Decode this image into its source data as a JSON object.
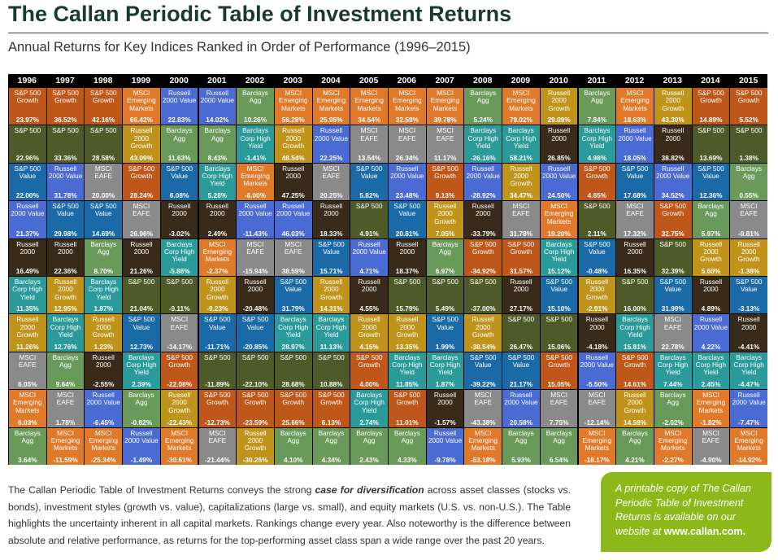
{
  "header": {
    "title": "The Callan Periodic Table of Investment Returns",
    "subtitle": "Annual Returns for Key Indices Ranked in Order of Performance (1996–2015)"
  },
  "colors": {
    "S&P 500 Growth": "#c0571a",
    "S&P 500": "#4e5a27",
    "S&P 500 Value": "#1a6aa8",
    "Russell 2000 Value": "#4a6ad4",
    "Russell 2000": "#3a2a1a",
    "Barclays Corp High Yield": "#2a9a9a",
    "Russell 2000 Growth": "#c0941a",
    "MSCI EAFE": "#8a8a8a",
    "Barclays Agg": "#6a9a5a",
    "MSCI Emerging Markets": "#e07a2a",
    "grid": "#000000",
    "callout": "#8cb81a"
  },
  "chart_data": {
    "type": "table",
    "title": "The Callan Periodic Table of Investment Returns",
    "subtitle": "Annual Returns for Key Indices Ranked in Order of Performance (1996–2015)",
    "years": [
      "1996",
      "1997",
      "1998",
      "1999",
      "2000",
      "2001",
      "2002",
      "2003",
      "2004",
      "2005",
      "2006",
      "2007",
      "2008",
      "2009",
      "2010",
      "2011",
      "2012",
      "2013",
      "2014",
      "2015"
    ],
    "columns": [
      [
        [
          "S&P 500 Growth",
          "23.97%"
        ],
        [
          "S&P 500",
          "22.96%"
        ],
        [
          "S&P 500 Value",
          "22.00%"
        ],
        [
          "Russell 2000 Value",
          "21.37%"
        ],
        [
          "Russell 2000",
          "16.49%"
        ],
        [
          "Barclays Corp High Yield",
          "11.35%"
        ],
        [
          "Russell 2000 Growth",
          "11.26%"
        ],
        [
          "MSCI EAFE",
          "6.05%"
        ],
        [
          "MSCI Emerging Markets",
          "6.03%"
        ],
        [
          "Barclays Agg",
          "3.64%"
        ]
      ],
      [
        [
          "S&P 500 Growth",
          "36.52%"
        ],
        [
          "S&P 500",
          "33.36%"
        ],
        [
          "Russell 2000 Value",
          "31.78%"
        ],
        [
          "S&P 500 Value",
          "29.98%"
        ],
        [
          "Russell 2000",
          "22.36%"
        ],
        [
          "Russell 2000 Growth",
          "12.95%"
        ],
        [
          "Barclays Corp High Yield",
          "12.76%"
        ],
        [
          "Barclays Agg",
          "9.64%"
        ],
        [
          "MSCI EAFE",
          "1.78%"
        ],
        [
          "MSCI Emerging Markets",
          "-11.59%"
        ]
      ],
      [
        [
          "S&P 500 Growth",
          "42.16%"
        ],
        [
          "S&P 500",
          "28.58%"
        ],
        [
          "MSCI EAFE",
          "20.00%"
        ],
        [
          "S&P 500 Value",
          "14.69%"
        ],
        [
          "Barclays Agg",
          "8.70%"
        ],
        [
          "Barclays Corp High Yield",
          "1.87%"
        ],
        [
          "Russell 2000 Growth",
          "1.23%"
        ],
        [
          "Russell 2000",
          "-2.55%"
        ],
        [
          "Russell 2000 Value",
          "-6.45%"
        ],
        [
          "MSCI Emerging Markets",
          "-25.34%"
        ]
      ],
      [
        [
          "MSCI Emerging Markets",
          "66.42%"
        ],
        [
          "Russell 2000 Growth",
          "43.09%"
        ],
        [
          "S&P 500 Growth",
          "28.24%"
        ],
        [
          "MSCI EAFE",
          "26.96%"
        ],
        [
          "Russell 2000",
          "21.26%"
        ],
        [
          "S&P 500",
          "21.04%"
        ],
        [
          "S&P 500 Value",
          "12.73%"
        ],
        [
          "Barclays Corp High Yield",
          "2.39%"
        ],
        [
          "Barclays Agg",
          "-0.82%"
        ],
        [
          "Russell 2000 Value",
          "-1.49%"
        ]
      ],
      [
        [
          "Russell 2000 Value",
          "22.83%"
        ],
        [
          "Barclays Agg",
          "11.63%"
        ],
        [
          "S&P 500 Value",
          "6.08%"
        ],
        [
          "Russell 2000",
          "-3.02%"
        ],
        [
          "Barclays Corp High Yield",
          "-5.86%"
        ],
        [
          "S&P 500",
          "-9.11%"
        ],
        [
          "MSCI EAFE",
          "-14.17%"
        ],
        [
          "S&P 500 Growth",
          "-22.08%"
        ],
        [
          "Russell 2000 Growth",
          "-22.43%"
        ],
        [
          "MSCI Emerging Markets",
          "-30.61%"
        ]
      ],
      [
        [
          "Russell 2000 Value",
          "14.02%"
        ],
        [
          "Barclays Agg",
          "8.43%"
        ],
        [
          "Barclays Corp High Yield",
          "5.28%"
        ],
        [
          "Russell 2000",
          "2.49%"
        ],
        [
          "MSCI Emerging Markets",
          "-2.37%"
        ],
        [
          "Russell 2000 Growth",
          "-9.23%"
        ],
        [
          "S&P 500 Value",
          "-11.71%"
        ],
        [
          "S&P 500",
          "-11.89%"
        ],
        [
          "S&P 500 Growth",
          "-12.73%"
        ],
        [
          "MSCI EAFE",
          "-21.44%"
        ]
      ],
      [
        [
          "Barclays Agg",
          "10.26%"
        ],
        [
          "Barclays Corp High Yield",
          "-1.41%"
        ],
        [
          "MSCI Emerging Markets",
          "-6.00%"
        ],
        [
          "Russell 2000 Value",
          "-11.43%"
        ],
        [
          "MSCI EAFE",
          "-15.94%"
        ],
        [
          "Russell 2000",
          "-20.48%"
        ],
        [
          "S&P 500 Value",
          "-20.85%"
        ],
        [
          "S&P 500",
          "-22.10%"
        ],
        [
          "S&P 500 Growth",
          "-23.59%"
        ],
        [
          "Russell 2000 Growth",
          "-30.26%"
        ]
      ],
      [
        [
          "MSCI Emerging Markets",
          "56.28%"
        ],
        [
          "Russell 2000 Growth",
          "48.54%"
        ],
        [
          "Russell 2000",
          "47.25%"
        ],
        [
          "Russell 2000 Value",
          "46.03%"
        ],
        [
          "MSCI EAFE",
          "38.59%"
        ],
        [
          "S&P 500 Value",
          "31.79%"
        ],
        [
          "Barclays Corp High Yield",
          "28.97%"
        ],
        [
          "S&P 500",
          "28.68%"
        ],
        [
          "S&P 500 Growth",
          "25.66%"
        ],
        [
          "Barclays Agg",
          "4.10%"
        ]
      ],
      [
        [
          "MSCI Emerging Markets",
          "25.95%"
        ],
        [
          "Russell 2000 Value",
          "22.25%"
        ],
        [
          "MSCI EAFE",
          "20.25%"
        ],
        [
          "Russell 2000",
          "18.33%"
        ],
        [
          "S&P 500 Value",
          "15.71%"
        ],
        [
          "Russell 2000 Growth",
          "14.31%"
        ],
        [
          "Barclays Corp High Yield",
          "11.13%"
        ],
        [
          "S&P 500",
          "10.88%"
        ],
        [
          "S&P 500 Growth",
          "6.13%"
        ],
        [
          "Barclays Agg",
          "4.34%"
        ]
      ],
      [
        [
          "MSCI Emerging Markets",
          "34.54%"
        ],
        [
          "MSCI EAFE",
          "13.54%"
        ],
        [
          "S&P 500 Value",
          "5.82%"
        ],
        [
          "S&P 500",
          "4.91%"
        ],
        [
          "Russell 2000 Value",
          "4.71%"
        ],
        [
          "Russell 2000",
          "4.55%"
        ],
        [
          "Russell 2000 Growth",
          "4.15%"
        ],
        [
          "S&P 500 Growth",
          "4.00%"
        ],
        [
          "Barclays Corp High Yield",
          "2.74%"
        ],
        [
          "Barclays Agg",
          "2.43%"
        ]
      ],
      [
        [
          "MSCI Emerging Markets",
          "32.59%"
        ],
        [
          "MSCI EAFE",
          "26.34%"
        ],
        [
          "Russell 2000 Value",
          "23.48%"
        ],
        [
          "S&P 500 Value",
          "20.81%"
        ],
        [
          "Russell 2000",
          "18.37%"
        ],
        [
          "S&P 500",
          "15.79%"
        ],
        [
          "Russell 2000 Growth",
          "13.35%"
        ],
        [
          "Barclays Corp High Yield",
          "11.85%"
        ],
        [
          "S&P 500 Growth",
          "11.01%"
        ],
        [
          "Barclays Agg",
          "4.33%"
        ]
      ],
      [
        [
          "MSCI Emerging Markets",
          "39.78%"
        ],
        [
          "MSCI EAFE",
          "11.17%"
        ],
        [
          "S&P 500 Growth",
          "9.13%"
        ],
        [
          "Russell 2000 Growth",
          "7.05%"
        ],
        [
          "Barclays Agg",
          "6.97%"
        ],
        [
          "S&P 500",
          "5.49%"
        ],
        [
          "S&P 500 Value",
          "1.99%"
        ],
        [
          "Barclays Corp High Yield",
          "1.87%"
        ],
        [
          "Russell 2000",
          "-1.57%"
        ],
        [
          "Russell 2000 Value",
          "-9.78%"
        ]
      ],
      [
        [
          "Barclays Agg",
          "5.24%"
        ],
        [
          "Barclays Corp High Yield",
          "-26.16%"
        ],
        [
          "Russell 2000 Value",
          "-28.92%"
        ],
        [
          "Russell 2000",
          "-33.79%"
        ],
        [
          "S&P 500 Growth",
          "-34.92%"
        ],
        [
          "S&P 500",
          "-37.00%"
        ],
        [
          "Russell 2000 Growth",
          "-38.54%"
        ],
        [
          "S&P 500 Value",
          "-39.22%"
        ],
        [
          "MSCI EAFE",
          "-43.38%"
        ],
        [
          "MSCI Emerging Markets",
          "-53.18%"
        ]
      ],
      [
        [
          "MSCI Emerging Markets",
          "79.02%"
        ],
        [
          "Barclays Corp High Yield",
          "58.21%"
        ],
        [
          "Russell 2000 Growth",
          "34.47%"
        ],
        [
          "MSCI EAFE",
          "31.78%"
        ],
        [
          "S&P 500 Growth",
          "31.57%"
        ],
        [
          "Russell 2000",
          "27.17%"
        ],
        [
          "S&P 500",
          "26.47%"
        ],
        [
          "S&P 500 Value",
          "21.17%"
        ],
        [
          "Russell 2000 Value",
          "20.58%"
        ],
        [
          "Barclays Agg",
          "5.93%"
        ]
      ],
      [
        [
          "Russell 2000 Growth",
          "29.09%"
        ],
        [
          "Russell 2000",
          "26.85%"
        ],
        [
          "Russell 2000 Value",
          "24.50%"
        ],
        [
          "MSCI Emerging Markets",
          "19.20%"
        ],
        [
          "Barclays Corp High Yield",
          "15.12%"
        ],
        [
          "S&P 500 Value",
          "15.10%"
        ],
        [
          "S&P 500",
          "15.06%"
        ],
        [
          "S&P 500 Growth",
          "15.05%"
        ],
        [
          "MSCI EAFE",
          "7.75%"
        ],
        [
          "Barclays Agg",
          "6.54%"
        ]
      ],
      [
        [
          "Barclays Agg",
          "7.84%"
        ],
        [
          "Barclays Corp High Yield",
          "4.98%"
        ],
        [
          "S&P 500 Growth",
          "4.65%"
        ],
        [
          "S&P 500",
          "2.11%"
        ],
        [
          "S&P 500 Value",
          "-0.48%"
        ],
        [
          "Russell 2000 Growth",
          "-2.91%"
        ],
        [
          "Russell 2000",
          "-4.18%"
        ],
        [
          "Russell 2000 Value",
          "-5.50%"
        ],
        [
          "MSCI EAFE",
          "-12.14%"
        ],
        [
          "MSCI Emerging Markets",
          "-18.17%"
        ]
      ],
      [
        [
          "MSCI Emerging Markets",
          "18.63%"
        ],
        [
          "Russell 2000 Value",
          "18.05%"
        ],
        [
          "S&P 500 Value",
          "17.68%"
        ],
        [
          "MSCI EAFE",
          "17.32%"
        ],
        [
          "Russell 2000",
          "16.35%"
        ],
        [
          "S&P 500",
          "16.00%"
        ],
        [
          "Barclays Corp High Yield",
          "15.81%"
        ],
        [
          "S&P 500 Growth",
          "14.61%"
        ],
        [
          "Russell 2000 Growth",
          "14.59%"
        ],
        [
          "Barclays Agg",
          "4.21%"
        ]
      ],
      [
        [
          "Russell 2000 Growth",
          "43.30%"
        ],
        [
          "Russell 2000",
          "38.82%"
        ],
        [
          "Russell 2000 Value",
          "34.52%"
        ],
        [
          "S&P 500 Growth",
          "32.75%"
        ],
        [
          "S&P 500",
          "32.39%"
        ],
        [
          "S&P 500 Value",
          "31.99%"
        ],
        [
          "MSCI EAFE",
          "22.78%"
        ],
        [
          "Barclays Corp High Yield",
          "7.44%"
        ],
        [
          "Barclays Agg",
          "-2.02%"
        ],
        [
          "MSCI Emerging Markets",
          "-2.27%"
        ]
      ],
      [
        [
          "S&P 500 Growth",
          "14.89%"
        ],
        [
          "S&P 500",
          "13.69%"
        ],
        [
          "S&P 500 Value",
          "12.36%"
        ],
        [
          "Barclays Agg",
          "5.97%"
        ],
        [
          "Russell 2000 Growth",
          "5.60%"
        ],
        [
          "Russell 2000",
          "4.89%"
        ],
        [
          "Russell 2000 Value",
          "4.22%"
        ],
        [
          "Barclays Corp High Yield",
          "2.45%"
        ],
        [
          "MSCI Emerging Markets",
          "-1.82%"
        ],
        [
          "MSCI EAFE",
          "-4.90%"
        ]
      ],
      [
        [
          "S&P 500 Growth",
          "5.52%"
        ],
        [
          "S&P 500",
          "1.38%"
        ],
        [
          "Barclays Agg",
          "0.55%"
        ],
        [
          "MSCI EAFE",
          "-0.81%"
        ],
        [
          "Russell 2000 Growth",
          "-1.38%"
        ],
        [
          "S&P 500 Value",
          "-3.13%"
        ],
        [
          "Russell 2000",
          "-4.41%"
        ],
        [
          "Barclays Corp High Yield",
          "-4.47%"
        ],
        [
          "Russell 2000 Value",
          "-7.47%"
        ],
        [
          "MSCI Emerging Markets",
          "-14.92%"
        ]
      ]
    ]
  },
  "footer": {
    "text_before": "The Callan Periodic Table of Investment Returns conveys the strong ",
    "text_emphasis": "case for diversification",
    "text_after": " across asset classes (stocks vs. bonds), investment styles (growth vs. value), capitalizations (large vs. small), and equity markets (U.S. vs. non-U.S.). The Table highlights the uncertainty inherent in all capital markets. Rankings change every year. Also noteworthy is the difference between absolute and relative performance, as returns for the top-performing asset class span a wide range over the past 20 years.",
    "callout_text": "A printable copy of The Callan Periodic Table of Investment Returns is available on our website at ",
    "callout_link": "www.callan.com",
    "callout_end": "."
  }
}
